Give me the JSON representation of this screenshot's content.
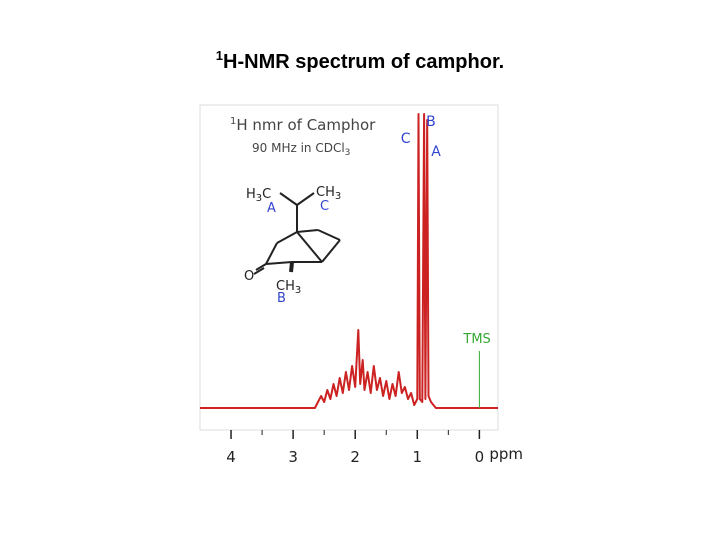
{
  "chart_data": {
    "type": "line",
    "title": {
      "sup": "1",
      "text": "H-NMR spectrum of camphor."
    },
    "inset": {
      "heading": {
        "sup": "1",
        "text": "H nmr of Camphor"
      },
      "conditions": {
        "text": "90 MHz in CDCl",
        "sub": "3"
      },
      "molecule": {
        "h3c": [
          "H",
          "3",
          "C"
        ],
        "ch3_top": [
          "CH",
          "3"
        ],
        "ch3_bottom": [
          "CH",
          "3"
        ],
        "o": "O",
        "groups": [
          "A",
          "C",
          "B"
        ]
      }
    },
    "x_label": "ppm",
    "xlim": [
      4.5,
      -0.3
    ],
    "ylim": [
      0,
      100
    ],
    "xticks": [
      4,
      3,
      2,
      1,
      0
    ],
    "xminor": [
      3.5,
      2.5,
      1.5,
      0.5
    ],
    "x": [
      4.5,
      2.65,
      2.6,
      2.55,
      2.5,
      2.45,
      2.4,
      2.35,
      2.3,
      2.25,
      2.2,
      2.15,
      2.1,
      2.05,
      2.0,
      1.95,
      1.92,
      1.88,
      1.85,
      1.8,
      1.75,
      1.7,
      1.65,
      1.6,
      1.55,
      1.5,
      1.45,
      1.4,
      1.35,
      1.3,
      1.25,
      1.2,
      1.15,
      1.1,
      1.05,
      1.0,
      0.98,
      0.96,
      0.92,
      0.89,
      0.87,
      0.84,
      0.82,
      0.78,
      0.7,
      -0.3
    ],
    "series": [
      {
        "color": "#cc2222",
        "values": [
          0,
          0,
          2,
          4,
          2,
          6,
          3,
          8,
          4,
          10,
          5,
          12,
          6,
          14,
          7,
          26,
          8,
          16,
          6,
          12,
          5,
          14,
          6,
          10,
          4,
          9,
          3,
          8,
          4,
          12,
          5,
          7,
          3,
          5,
          1,
          3,
          98,
          3,
          2,
          98,
          3,
          96,
          4,
          2,
          0,
          0
        ]
      }
    ],
    "peak_labels": [
      {
        "label": "C",
        "x": 0.98
      },
      {
        "label": "B",
        "x": 0.89
      },
      {
        "label": "A",
        "x": 0.84
      }
    ],
    "peak_label_color": "#3344cc",
    "reference": {
      "label": "TMS",
      "x": 0,
      "y": 19,
      "color": "#33aa33"
    }
  }
}
